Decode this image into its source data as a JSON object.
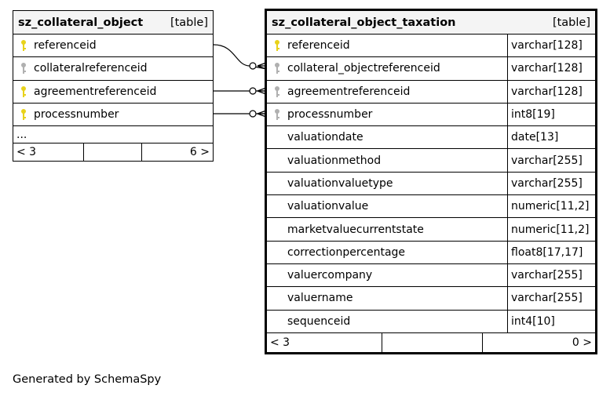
{
  "left_table": {
    "name": "sz_collateral_object",
    "kind": "[table]",
    "columns": [
      {
        "name": "referenceid",
        "key": "primary"
      },
      {
        "name": "collateralreferenceid",
        "key": "foreign"
      },
      {
        "name": "agreementreferenceid",
        "key": "primary"
      },
      {
        "name": "processnumber",
        "key": "primary"
      }
    ],
    "more": "...",
    "footer": {
      "left": "< 3",
      "right": "6 >"
    }
  },
  "right_table": {
    "name": "sz_collateral_object_taxation",
    "kind": "[table]",
    "columns": [
      {
        "name": "referenceid",
        "type": "varchar[128]",
        "key": "primary"
      },
      {
        "name": "collateral_objectreferenceid",
        "type": "varchar[128]",
        "key": "foreign"
      },
      {
        "name": "agreementreferenceid",
        "type": "varchar[128]",
        "key": "foreign"
      },
      {
        "name": "processnumber",
        "type": "int8[19]",
        "key": "foreign"
      },
      {
        "name": "valuationdate",
        "type": "date[13]",
        "key": "none"
      },
      {
        "name": "valuationmethod",
        "type": "varchar[255]",
        "key": "none"
      },
      {
        "name": "valuationvaluetype",
        "type": "varchar[255]",
        "key": "none"
      },
      {
        "name": "valuationvalue",
        "type": "numeric[11,2]",
        "key": "none"
      },
      {
        "name": "marketvaluecurrentstate",
        "type": "numeric[11,2]",
        "key": "none"
      },
      {
        "name": "correctionpercentage",
        "type": "float8[17,17]",
        "key": "none"
      },
      {
        "name": "valuercompany",
        "type": "varchar[255]",
        "key": "none"
      },
      {
        "name": "valuername",
        "type": "varchar[255]",
        "key": "none"
      },
      {
        "name": "sequenceid",
        "type": "int4[10]",
        "key": "none"
      }
    ],
    "footer": {
      "left": "< 3",
      "right": "0 >"
    }
  },
  "icons": {
    "primary": "primary-key-icon",
    "foreign": "foreign-key-icon"
  },
  "colors": {
    "primary_key": "#e8d21a",
    "foreign_key": "#b0b0b0",
    "header_bg": "#f4f4f4"
  },
  "generated_by": "Generated by SchemaSpy"
}
